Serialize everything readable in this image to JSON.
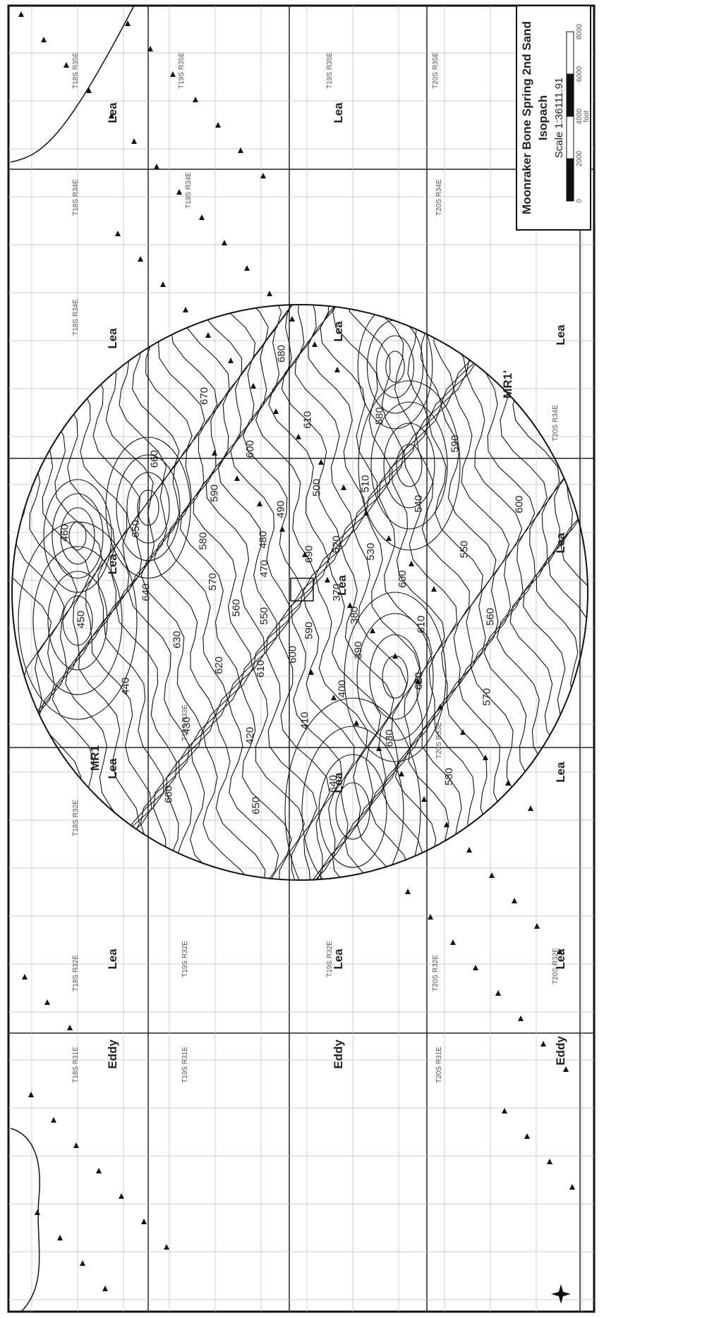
{
  "legend": {
    "title": "Moonraker Bone Spring 2nd Sand",
    "subtitle": "Isopach",
    "scale": "Scale 1:36111.91",
    "scale_ticks": [
      "0",
      "2000",
      "4000",
      "6000",
      "8000"
    ],
    "unit": "foot"
  },
  "counties": [
    "Lea",
    "Lea",
    "Lea",
    "Lea",
    "Lea",
    "Lea",
    "Lea",
    "Lea",
    "Lea",
    "Lea",
    "Lea",
    "Lea",
    "Eddy",
    "Eddy",
    "Eddy",
    "Lea",
    "Lea"
  ],
  "townships": [
    "T18S R35E",
    "T19S R35E",
    "T19S R35E",
    "T20S R35E",
    "T18S R34E",
    "T19S R34E",
    "T20S R34E",
    "T18S R34E",
    "T18S R32E",
    "T19S R32E",
    "T20S R32E",
    "T18S R32E",
    "T19S R32E",
    "T20S R32E",
    "T18S R31E",
    "T19S R31E",
    "T20S R31E",
    "T19S R33E",
    "T20S R33E",
    "T20S R34E"
  ],
  "contours": [
    "370",
    "380",
    "390",
    "400",
    "410",
    "420",
    "430",
    "440",
    "450",
    "460",
    "470",
    "480",
    "490",
    "500",
    "510",
    "540",
    "550",
    "560",
    "570",
    "580",
    "590",
    "600",
    "610",
    "620",
    "630",
    "640",
    "650",
    "660",
    "670",
    "680",
    "690",
    "520",
    "530",
    "600",
    "610",
    "620",
    "630",
    "640",
    "650",
    "660",
    "550",
    "560",
    "570",
    "580",
    "590",
    "600",
    "610",
    "580",
    "590",
    "600"
  ],
  "sections": [
    "MR1",
    "MR1'"
  ]
}
